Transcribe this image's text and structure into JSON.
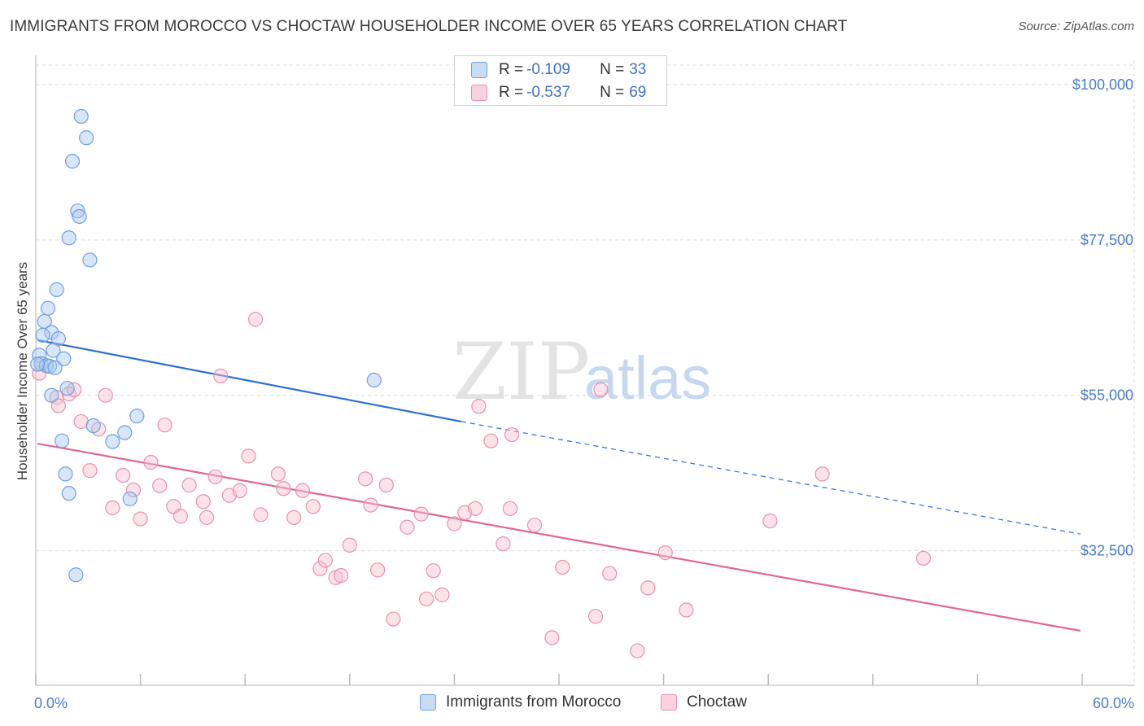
{
  "title": "IMMIGRANTS FROM MOROCCO VS CHOCTAW HOUSEHOLDER INCOME OVER 65 YEARS CORRELATION CHART",
  "source": "Source: ZipAtlas.com",
  "watermark": {
    "zip": "ZIP",
    "atlas": "atlas"
  },
  "legend": {
    "rows": [
      {
        "r_label": "R =",
        "r_value": "-0.109",
        "n_label": "N =",
        "n_value": "33",
        "color": "#a8c8f0",
        "border": "#6f9fe0"
      },
      {
        "r_label": "R =",
        "r_value": "-0.537",
        "n_label": "N =",
        "n_value": "69",
        "color": "#f8c0d0",
        "border": "#e890aa"
      }
    ]
  },
  "bottom_legend": {
    "items": [
      {
        "label": "Immigrants from Morocco",
        "color": "#c9dcf5",
        "border": "#6f9fe0"
      },
      {
        "label": "Choctaw",
        "color": "#f9d2de",
        "border": "#e890aa"
      }
    ]
  },
  "chart_data": {
    "type": "scatter",
    "title": "IMMIGRANTS FROM MOROCCO VS CHOCTAW HOUSEHOLDER INCOME OVER 65 YEARS CORRELATION CHART",
    "xlabel": "",
    "ylabel": "Householder Income Over 65 years",
    "xlim": [
      0,
      60
    ],
    "ylim": [
      13000,
      104000
    ],
    "x_tick_labels": [
      "0.0%",
      "60.0%"
    ],
    "y_ticks": [
      32500,
      55000,
      77500,
      100000
    ],
    "y_tick_labels": [
      "$32,500",
      "$55,000",
      "$77,500",
      "$100,000"
    ],
    "grid": true,
    "series": [
      {
        "name": "Immigrants from Morocco",
        "color": "#6f9fe0",
        "fill": "#a8c8f0",
        "line_color": "#2f6fd0",
        "trend": {
          "x0": 0.1,
          "y0": 63000,
          "x1": 24.4,
          "y1": 51200,
          "x_dash_end": 59.9,
          "y_dash_end": 34900
        },
        "points": [
          {
            "x": 2.6,
            "y": 95400
          },
          {
            "x": 2.9,
            "y": 92300
          },
          {
            "x": 2.1,
            "y": 88900
          },
          {
            "x": 2.4,
            "y": 81700
          },
          {
            "x": 2.5,
            "y": 80900
          },
          {
            "x": 1.9,
            "y": 77800
          },
          {
            "x": 3.1,
            "y": 74600
          },
          {
            "x": 1.2,
            "y": 70300
          },
          {
            "x": 0.7,
            "y": 67600
          },
          {
            "x": 0.5,
            "y": 65700
          },
          {
            "x": 0.9,
            "y": 64100
          },
          {
            "x": 0.4,
            "y": 63700
          },
          {
            "x": 1.3,
            "y": 63200
          },
          {
            "x": 1.0,
            "y": 61500
          },
          {
            "x": 1.6,
            "y": 60300
          },
          {
            "x": 0.2,
            "y": 60800
          },
          {
            "x": 0.3,
            "y": 59600
          },
          {
            "x": 0.6,
            "y": 59300
          },
          {
            "x": 0.8,
            "y": 59200
          },
          {
            "x": 1.1,
            "y": 59000
          },
          {
            "x": 1.8,
            "y": 56000
          },
          {
            "x": 0.9,
            "y": 55000
          },
          {
            "x": 5.8,
            "y": 52000
          },
          {
            "x": 3.3,
            "y": 50600
          },
          {
            "x": 5.1,
            "y": 49600
          },
          {
            "x": 4.4,
            "y": 48300
          },
          {
            "x": 1.5,
            "y": 48400
          },
          {
            "x": 1.7,
            "y": 43600
          },
          {
            "x": 1.9,
            "y": 40800
          },
          {
            "x": 5.4,
            "y": 40000
          },
          {
            "x": 2.3,
            "y": 29000
          },
          {
            "x": 19.4,
            "y": 57200
          },
          {
            "x": 0.1,
            "y": 59500
          }
        ]
      },
      {
        "name": "Choctaw",
        "color": "#e890aa",
        "fill": "#f8c0d0",
        "line_color": "#e06890",
        "trend": {
          "x0": 0.1,
          "y0": 48000,
          "x1": 59.9,
          "y1": 20900
        },
        "points": [
          {
            "x": 0.2,
            "y": 58200
          },
          {
            "x": 1.9,
            "y": 55200
          },
          {
            "x": 2.2,
            "y": 55800
          },
          {
            "x": 1.2,
            "y": 54700
          },
          {
            "x": 1.3,
            "y": 53500
          },
          {
            "x": 4.0,
            "y": 55000
          },
          {
            "x": 2.6,
            "y": 51200
          },
          {
            "x": 3.6,
            "y": 50100
          },
          {
            "x": 7.4,
            "y": 50700
          },
          {
            "x": 3.1,
            "y": 44100
          },
          {
            "x": 6.6,
            "y": 45300
          },
          {
            "x": 5.0,
            "y": 43400
          },
          {
            "x": 5.6,
            "y": 41300
          },
          {
            "x": 7.1,
            "y": 41900
          },
          {
            "x": 8.8,
            "y": 42000
          },
          {
            "x": 4.4,
            "y": 38700
          },
          {
            "x": 6.0,
            "y": 37100
          },
          {
            "x": 7.9,
            "y": 38900
          },
          {
            "x": 8.3,
            "y": 37500
          },
          {
            "x": 9.6,
            "y": 39600
          },
          {
            "x": 9.8,
            "y": 37300
          },
          {
            "x": 10.3,
            "y": 43200
          },
          {
            "x": 11.1,
            "y": 40500
          },
          {
            "x": 11.7,
            "y": 41200
          },
          {
            "x": 12.2,
            "y": 46200
          },
          {
            "x": 10.6,
            "y": 57800
          },
          {
            "x": 12.6,
            "y": 66000
          },
          {
            "x": 12.9,
            "y": 37700
          },
          {
            "x": 13.9,
            "y": 43600
          },
          {
            "x": 14.2,
            "y": 41500
          },
          {
            "x": 14.8,
            "y": 37300
          },
          {
            "x": 15.3,
            "y": 41200
          },
          {
            "x": 15.9,
            "y": 38900
          },
          {
            "x": 16.3,
            "y": 29900
          },
          {
            "x": 16.6,
            "y": 31100
          },
          {
            "x": 17.2,
            "y": 28600
          },
          {
            "x": 17.5,
            "y": 28900
          },
          {
            "x": 18.0,
            "y": 33300
          },
          {
            "x": 18.9,
            "y": 42900
          },
          {
            "x": 19.2,
            "y": 39100
          },
          {
            "x": 19.6,
            "y": 29700
          },
          {
            "x": 20.1,
            "y": 42000
          },
          {
            "x": 20.5,
            "y": 22600
          },
          {
            "x": 21.3,
            "y": 35900
          },
          {
            "x": 22.1,
            "y": 37800
          },
          {
            "x": 22.4,
            "y": 25500
          },
          {
            "x": 22.8,
            "y": 29600
          },
          {
            "x": 23.3,
            "y": 26100
          },
          {
            "x": 24.0,
            "y": 36400
          },
          {
            "x": 24.6,
            "y": 38000
          },
          {
            "x": 25.2,
            "y": 38600
          },
          {
            "x": 25.4,
            "y": 53400
          },
          {
            "x": 26.1,
            "y": 48400
          },
          {
            "x": 26.8,
            "y": 33500
          },
          {
            "x": 27.2,
            "y": 38600
          },
          {
            "x": 27.3,
            "y": 49300
          },
          {
            "x": 28.6,
            "y": 36200
          },
          {
            "x": 29.6,
            "y": 19900
          },
          {
            "x": 30.2,
            "y": 30100
          },
          {
            "x": 32.1,
            "y": 23000
          },
          {
            "x": 32.4,
            "y": 55800
          },
          {
            "x": 32.9,
            "y": 29200
          },
          {
            "x": 34.5,
            "y": 18000
          },
          {
            "x": 35.1,
            "y": 27100
          },
          {
            "x": 36.1,
            "y": 32200
          },
          {
            "x": 37.3,
            "y": 23900
          },
          {
            "x": 42.1,
            "y": 36800
          },
          {
            "x": 45.1,
            "y": 43600
          },
          {
            "x": 50.9,
            "y": 31400
          }
        ]
      }
    ]
  }
}
